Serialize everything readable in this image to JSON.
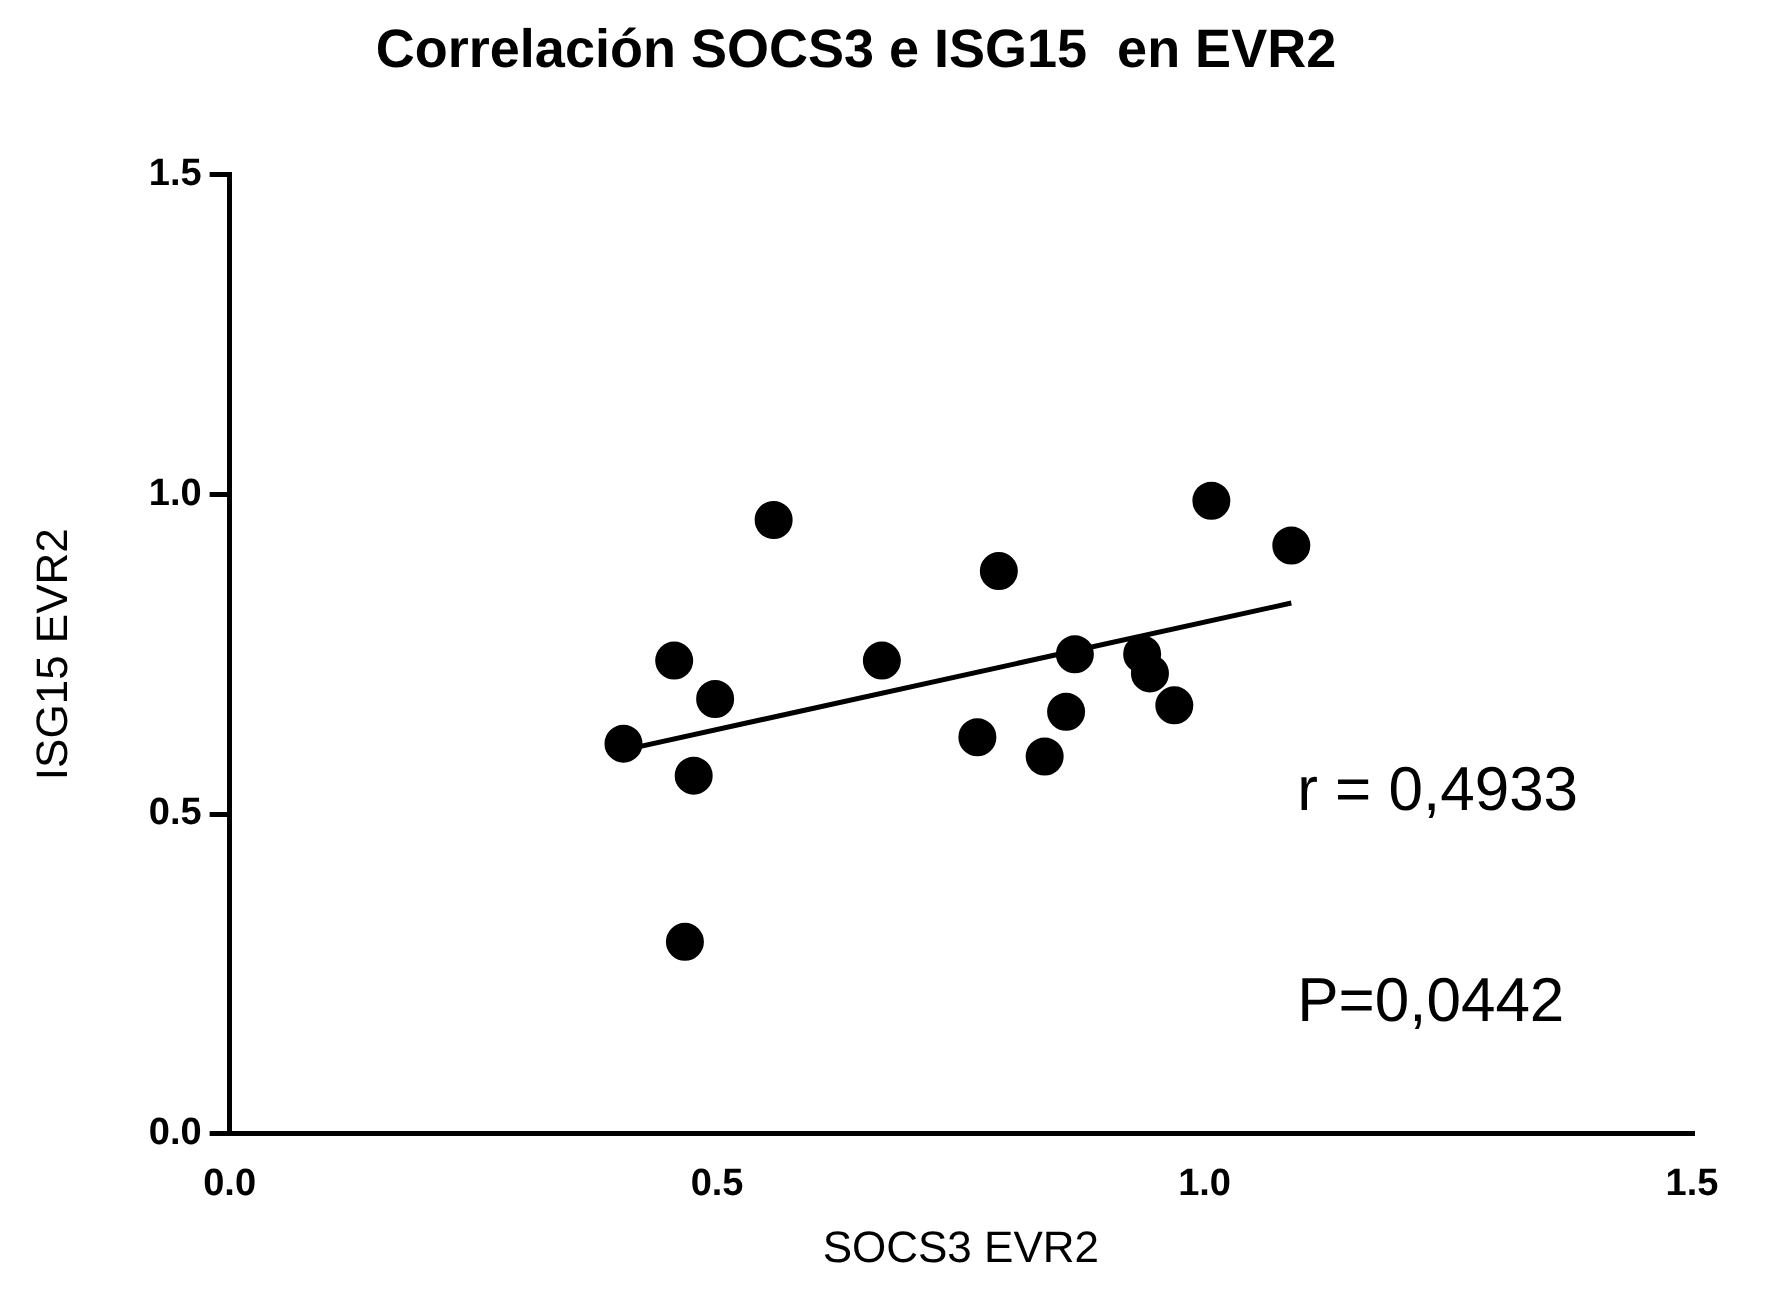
{
  "chart_data": {
    "type": "scatter",
    "title": "Correlación SOCS3 e ISG15  en EVR2",
    "xlabel": "SOCS3 EVR2",
    "ylabel": "ISG15 EVR2",
    "series": [
      {
        "marker": "circle",
        "color": "#000000",
        "x": [
          0.404,
          0.456,
          0.498,
          0.476,
          0.467,
          0.558,
          0.669,
          0.789,
          0.767,
          0.836,
          0.858,
          0.867,
          0.936,
          0.944,
          0.969,
          1.007,
          1.089
        ],
        "values": [
          0.61,
          0.74,
          0.68,
          0.56,
          0.3,
          0.96,
          0.74,
          0.88,
          0.62,
          0.59,
          0.66,
          0.75,
          0.75,
          0.72,
          0.67,
          0.99,
          0.92
        ]
      },
      {
        "type": "line",
        "marker": "none",
        "color": "#000000",
        "x": [
          0.404,
          1.089
        ],
        "values": [
          0.6,
          0.83
        ]
      }
    ],
    "xlim": [
      0,
      1.5
    ],
    "ylim": [
      0,
      1.5
    ],
    "xticks": [
      {
        "value": 0,
        "label": "0.0"
      },
      {
        "value": 0.5,
        "label": "0.5"
      },
      {
        "value": 1,
        "label": "1.0"
      },
      {
        "value": 1.5,
        "label": "1.5"
      }
    ],
    "yticks": [
      {
        "value": 0,
        "label": "0.0"
      },
      {
        "value": 0.5,
        "label": "0.5"
      },
      {
        "value": 1,
        "label": "1.0"
      },
      {
        "value": 1.5,
        "label": "1.5"
      }
    ],
    "annotations": [
      "r = 0,4933",
      "P=0,0442"
    ],
    "grid": false,
    "legend": false,
    "line_style": "solid"
  }
}
